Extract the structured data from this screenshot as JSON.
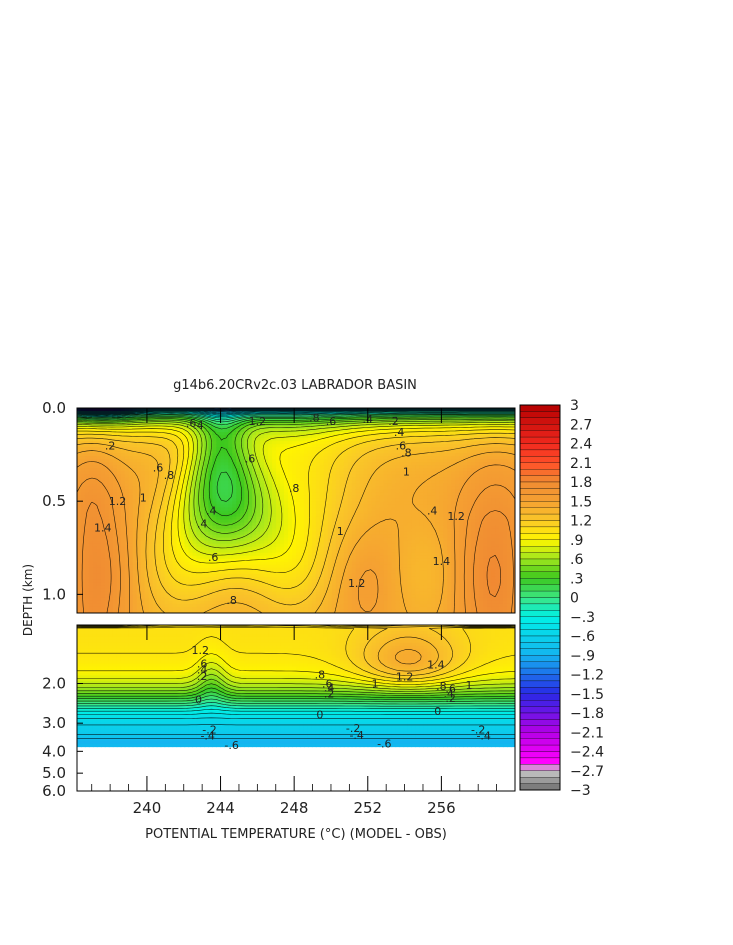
{
  "chart_data": {
    "type": "heatmap",
    "title": "g14b6.20CRv2c.03 LABRADOR BASIN",
    "xlabel": "POTENTIAL TEMPERATURE (°C) (MODEL - OBS)",
    "ylabel": "DEPTH (km)",
    "x_ticks": [
      "240",
      "244",
      "248",
      "252",
      "256"
    ],
    "upper_panel": {
      "y_range": [
        0.0,
        1.1
      ],
      "y_ticks": [
        "0.0",
        "0.5",
        "1.0"
      ]
    },
    "lower_panel": {
      "y_range": [
        1.1,
        6.0
      ],
      "y_ticks": [
        "2.0",
        "3.0",
        "4.0",
        "5.0",
        "6.0"
      ]
    },
    "colorbar": {
      "range": [
        -3,
        3
      ],
      "tick_labels": [
        "3",
        "2.7",
        "2.4",
        "2.1",
        "1.8",
        "1.5",
        "1.2",
        ".9",
        ".6",
        ".3",
        "0",
        "-.3",
        "-.6",
        "-.9",
        "-1.2",
        "-1.5",
        "-1.8",
        "-2.1",
        "-2.4",
        "-2.7",
        "-3"
      ]
    },
    "contour_labels": [
      {
        "text": ".6",
        "x": 242.4,
        "d": 0.08
      },
      {
        "text": ".4",
        "x": 242.8,
        "d": 0.09
      },
      {
        "text": "1.2",
        "x": 246.0,
        "d": 0.07
      },
      {
        "text": ".8",
        "x": 249.1,
        "d": 0.05
      },
      {
        "text": ".6",
        "x": 250.0,
        "d": 0.07
      },
      {
        "text": ".4",
        "x": 252.0,
        "d": 0.06
      },
      {
        "text": ".2",
        "x": 253.4,
        "d": 0.07
      },
      {
        "text": ".2",
        "x": 238.0,
        "d": 0.2
      },
      {
        "text": ".6",
        "x": 240.6,
        "d": 0.32
      },
      {
        "text": ".8",
        "x": 241.2,
        "d": 0.36
      },
      {
        "text": "1",
        "x": 239.8,
        "d": 0.48
      },
      {
        "text": "1.2",
        "x": 238.4,
        "d": 0.5
      },
      {
        "text": "1.4",
        "x": 237.6,
        "d": 0.64
      },
      {
        "text": ".4",
        "x": 243.0,
        "d": 0.62
      },
      {
        "text": ".4",
        "x": 243.5,
        "d": 0.55
      },
      {
        "text": ".6",
        "x": 243.6,
        "d": 0.8
      },
      {
        "text": ".8",
        "x": 244.6,
        "d": 1.03
      },
      {
        "text": ".6",
        "x": 245.6,
        "d": 0.27
      },
      {
        "text": ".8",
        "x": 248.0,
        "d": 0.43
      },
      {
        "text": "1",
        "x": 250.5,
        "d": 0.66
      },
      {
        "text": "1.2",
        "x": 251.4,
        "d": 0.94
      },
      {
        "text": ".4",
        "x": 255.5,
        "d": 0.55
      },
      {
        "text": "1.2",
        "x": 256.8,
        "d": 0.58
      },
      {
        "text": "1.4",
        "x": 256.0,
        "d": 0.82
      },
      {
        "text": ".4",
        "x": 253.7,
        "d": 0.13
      },
      {
        "text": ".6",
        "x": 253.8,
        "d": 0.2
      },
      {
        "text": ".8",
        "x": 254.1,
        "d": 0.24
      },
      {
        "text": "1",
        "x": 254.1,
        "d": 0.34
      },
      {
        "text": "1.2",
        "x": 242.9,
        "d": 1.42
      },
      {
        "text": ".6",
        "x": 243.0,
        "d": 1.63
      },
      {
        "text": ".4",
        "x": 243.0,
        "d": 1.73
      },
      {
        "text": ".2",
        "x": 243.0,
        "d": 1.85
      },
      {
        "text": "0",
        "x": 242.8,
        "d": 2.35
      },
      {
        "text": ".8",
        "x": 249.4,
        "d": 1.82
      },
      {
        "text": ".6",
        "x": 249.8,
        "d": 2.0
      },
      {
        "text": ".4",
        "x": 249.9,
        "d": 2.08
      },
      {
        "text": ".2",
        "x": 249.9,
        "d": 2.22
      },
      {
        "text": "0",
        "x": 249.4,
        "d": 2.75
      },
      {
        "text": "1",
        "x": 252.4,
        "d": 2.0
      },
      {
        "text": "1.2",
        "x": 254.0,
        "d": 1.86
      },
      {
        "text": "1.4",
        "x": 255.7,
        "d": 1.65
      },
      {
        "text": ".8",
        "x": 256.0,
        "d": 2.05
      },
      {
        "text": ".6",
        "x": 256.5,
        "d": 2.1
      },
      {
        "text": ".4",
        "x": 256.4,
        "d": 2.22
      },
      {
        "text": ".2",
        "x": 256.5,
        "d": 2.32
      },
      {
        "text": "0",
        "x": 255.8,
        "d": 2.65
      },
      {
        "text": "1",
        "x": 257.5,
        "d": 2.03
      },
      {
        "text": "-.2",
        "x": 243.4,
        "d": 3.2
      },
      {
        "text": "-.4",
        "x": 243.3,
        "d": 3.4
      },
      {
        "text": "-.2",
        "x": 251.2,
        "d": 3.15
      },
      {
        "text": "-.4",
        "x": 251.4,
        "d": 3.38
      },
      {
        "text": "-.6",
        "x": 244.6,
        "d": 3.75
      },
      {
        "text": "-.6",
        "x": 252.9,
        "d": 3.7
      },
      {
        "text": "-.2",
        "x": 258.0,
        "d": 3.2
      },
      {
        "text": "-.4",
        "x": 258.3,
        "d": 3.4
      }
    ]
  }
}
